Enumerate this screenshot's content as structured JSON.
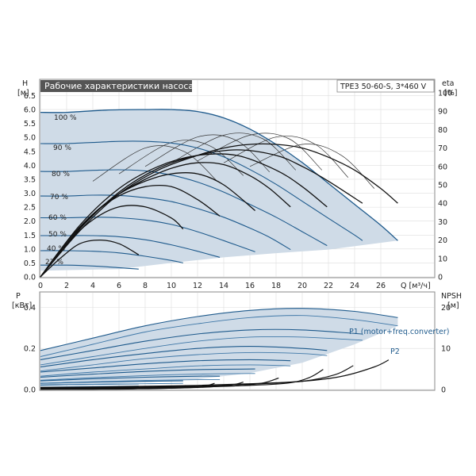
{
  "header": {
    "title": "Рабочие характеристики насоса",
    "model": "TPE3 50-60-S, 3*460 V"
  },
  "colors": {
    "envelope": "#cfdbe7",
    "speed_curve": "#1e5a8c",
    "eff_curve": "#111111",
    "title_bg": "#555555",
    "grid": "#dddddd",
    "frame": "#888888"
  },
  "chart_data": [
    {
      "type": "line",
      "name": "head",
      "ylabel_left": [
        "H",
        "[м]"
      ],
      "ylabel_right": [
        "eta",
        "[%]"
      ],
      "xlabel": "Q [м³/ч]",
      "xlim": [
        0,
        30
      ],
      "ylim": [
        0,
        6.6
      ],
      "ylim_right": [
        0,
        100
      ],
      "xticks": [
        "0",
        "2",
        "4",
        "6",
        "8",
        "10",
        "12",
        "14",
        "16",
        "18",
        "20",
        "22",
        "24",
        "26"
      ],
      "yticks": [
        "0.0",
        "0.5",
        "1.0",
        "1.5",
        "2.0",
        "2.5",
        "3.0",
        "3.5",
        "4.0",
        "4.5",
        "5.0",
        "5.5",
        "6.0",
        "6.5"
      ],
      "yticks_right": [
        "0",
        "10",
        "20",
        "30",
        "40",
        "50",
        "60",
        "70",
        "80",
        "90",
        "100"
      ],
      "grid": true,
      "envelope": {
        "upper_q": [
          0,
          2,
          5,
          8,
          10,
          12,
          14,
          16,
          18,
          20,
          22,
          24,
          26,
          27.3
        ],
        "upper_h": [
          5.9,
          5.9,
          5.98,
          6.0,
          6.0,
          5.93,
          5.7,
          5.3,
          4.75,
          4.1,
          3.35,
          2.6,
          1.85,
          1.3
        ],
        "lower_q": [
          27.3,
          22,
          18,
          14,
          10,
          7.5,
          6
        ],
        "lower_h": [
          1.3,
          0.98,
          0.85,
          0.7,
          0.5,
          0.36,
          0.28
        ]
      },
      "speed_series": [
        {
          "label": "100 %",
          "q": [
            0,
            2,
            5,
            8,
            10,
            12,
            14,
            16,
            18,
            20,
            22,
            24,
            26,
            27.3
          ],
          "h": [
            5.9,
            5.9,
            5.98,
            6.0,
            6.0,
            5.93,
            5.7,
            5.3,
            4.75,
            4.1,
            3.35,
            2.6,
            1.85,
            1.3
          ]
        },
        {
          "label": "90 %",
          "q": [
            0,
            2,
            4,
            6,
            8,
            10,
            12,
            14,
            16,
            18,
            20,
            22,
            24,
            24.6
          ],
          "h": [
            4.78,
            4.78,
            4.82,
            4.86,
            4.86,
            4.8,
            4.62,
            4.3,
            3.85,
            3.32,
            2.71,
            2.1,
            1.5,
            1.3
          ]
        },
        {
          "label": "80 %",
          "q": [
            0,
            2,
            4,
            6,
            8,
            10,
            12,
            14,
            16,
            18,
            20,
            21.9
          ],
          "h": [
            3.78,
            3.78,
            3.82,
            3.84,
            3.8,
            3.65,
            3.4,
            3.04,
            2.6,
            2.14,
            1.62,
            1.12
          ]
        },
        {
          "label": "70 %",
          "q": [
            0,
            2,
            4,
            6,
            8,
            10,
            12,
            14,
            16,
            17.5,
            19.1
          ],
          "h": [
            2.9,
            2.9,
            2.93,
            2.92,
            2.84,
            2.7,
            2.45,
            2.14,
            1.75,
            1.42,
            0.98
          ]
        },
        {
          "label": "60 %",
          "q": [
            0,
            2,
            4,
            6,
            8,
            10,
            12,
            14,
            16.4
          ],
          "h": [
            2.12,
            2.12,
            2.14,
            2.12,
            2.04,
            1.88,
            1.62,
            1.3,
            0.9
          ]
        },
        {
          "label": "50 %",
          "q": [
            0,
            2,
            4,
            6,
            8,
            10,
            12,
            13.7
          ],
          "h": [
            1.48,
            1.48,
            1.48,
            1.44,
            1.33,
            1.15,
            0.92,
            0.7
          ]
        },
        {
          "label": "40 %",
          "q": [
            0,
            2,
            4,
            6,
            8,
            10,
            10.9
          ],
          "h": [
            0.94,
            0.94,
            0.92,
            0.86,
            0.74,
            0.59,
            0.5
          ]
        },
        {
          "label": "27 %",
          "q": [
            0,
            2,
            4,
            6,
            7.5
          ],
          "h": [
            0.42,
            0.42,
            0.39,
            0.33,
            0.28
          ]
        }
      ],
      "efficiency_series": [
        {
          "q": [
            0,
            3,
            6,
            9,
            12,
            14,
            16,
            18,
            20,
            22,
            24,
            26,
            27.3
          ],
          "eta": [
            0,
            25,
            45,
            58,
            66,
            70,
            72,
            72,
            70,
            65,
            58,
            48,
            40
          ]
        },
        {
          "q": [
            0,
            3,
            6,
            9,
            12,
            15,
            18,
            20,
            22,
            24.6
          ],
          "eta": [
            0,
            26,
            46,
            59,
            66,
            69,
            66,
            60,
            52,
            40
          ]
        },
        {
          "q": [
            0,
            3,
            6,
            9,
            12,
            15,
            18,
            20,
            21.9
          ],
          "eta": [
            0,
            28,
            48,
            60,
            66,
            66,
            58,
            49,
            38
          ]
        },
        {
          "q": [
            0,
            2,
            4,
            6,
            8,
            10,
            12,
            14,
            16,
            17.5,
            19.1
          ],
          "eta": [
            0,
            19,
            34,
            45,
            53,
            59,
            62,
            61,
            55,
            48,
            38
          ]
        },
        {
          "q": [
            0,
            2,
            4,
            6,
            8,
            10,
            12,
            14,
            16.4
          ],
          "eta": [
            0,
            18,
            34,
            45,
            52,
            56,
            56,
            50,
            36
          ]
        },
        {
          "q": [
            0,
            2,
            4,
            6,
            8,
            10,
            12,
            13.7
          ],
          "eta": [
            0,
            19,
            34,
            44,
            49,
            49,
            42,
            33
          ]
        },
        {
          "q": [
            0,
            2,
            4,
            6,
            8,
            10,
            10.9
          ],
          "eta": [
            0,
            18,
            31,
            38,
            38,
            32,
            26
          ]
        },
        {
          "q": [
            0,
            1.5,
            3,
            4.5,
            6,
            7.5
          ],
          "eta": [
            0,
            10,
            18,
            20,
            18,
            12
          ]
        }
      ],
      "iso_efficiency_arcs": [
        {
          "q": [
            4,
            8,
            11,
            13.5
          ],
          "eta": [
            52,
            70,
            68,
            52
          ]
        },
        {
          "q": [
            6,
            10,
            13,
            15.5
          ],
          "eta": [
            56,
            73,
            71,
            55
          ]
        },
        {
          "q": [
            8,
            12,
            15,
            17.5
          ],
          "eta": [
            60,
            76,
            74,
            57
          ]
        },
        {
          "q": [
            10,
            14,
            17,
            19.5
          ],
          "eta": [
            62,
            77,
            75,
            58
          ]
        },
        {
          "q": [
            12,
            16,
            19,
            21.5
          ],
          "eta": [
            63,
            77,
            75,
            58
          ]
        },
        {
          "q": [
            14,
            18,
            21,
            23.5
          ],
          "eta": [
            62,
            76,
            72,
            54
          ]
        },
        {
          "q": [
            16,
            20,
            23,
            25.5
          ],
          "eta": [
            60,
            72,
            66,
            48
          ]
        }
      ]
    },
    {
      "type": "line",
      "name": "power",
      "ylabel_left": [
        "P",
        "[кВт]"
      ],
      "ylabel_right": [
        "NPSH",
        "[м]"
      ],
      "xlim": [
        0,
        30
      ],
      "ylim": [
        0,
        0.44
      ],
      "ylim_right": [
        0,
        22
      ],
      "yticks": [
        "0.0",
        "0.2",
        "0.4"
      ],
      "yticks_right": [
        "0",
        "10",
        "20"
      ],
      "grid": true,
      "envelope": {
        "upper_q": [
          0,
          4,
          8,
          12,
          16,
          20,
          24,
          27.3
        ],
        "upper_p": [
          0.19,
          0.25,
          0.31,
          0.355,
          0.385,
          0.395,
          0.38,
          0.35
        ],
        "lower_q": [
          27.3,
          24,
          20,
          16,
          12,
          8,
          4,
          0
        ],
        "lower_p": [
          0.31,
          0.22,
          0.13,
          0.08,
          0.05,
          0.035,
          0.025,
          0.02
        ]
      },
      "p1_series": [
        {
          "q": [
            0,
            4,
            8,
            12,
            16,
            20,
            24,
            27.3
          ],
          "p": [
            0.19,
            0.25,
            0.31,
            0.355,
            0.385,
            0.395,
            0.38,
            0.35
          ]
        },
        {
          "q": [
            0,
            4,
            8,
            12,
            16,
            20,
            24.6
          ],
          "p": [
            0.145,
            0.19,
            0.235,
            0.27,
            0.29,
            0.29,
            0.27
          ]
        },
        {
          "q": [
            0,
            4,
            8,
            12,
            16,
            20,
            21.9
          ],
          "p": [
            0.11,
            0.145,
            0.175,
            0.2,
            0.21,
            0.2,
            0.19
          ]
        },
        {
          "q": [
            0,
            4,
            8,
            12,
            16,
            19.1
          ],
          "p": [
            0.085,
            0.105,
            0.125,
            0.14,
            0.145,
            0.14
          ]
        },
        {
          "q": [
            0,
            4,
            8,
            12,
            16.4
          ],
          "p": [
            0.06,
            0.075,
            0.088,
            0.097,
            0.1
          ]
        },
        {
          "q": [
            0,
            4,
            8,
            12,
            13.7
          ],
          "p": [
            0.042,
            0.052,
            0.06,
            0.065,
            0.065
          ]
        },
        {
          "q": [
            0,
            4,
            8,
            10.9
          ],
          "p": [
            0.03,
            0.036,
            0.04,
            0.042
          ]
        },
        {
          "q": [
            0,
            4,
            7.5
          ],
          "p": [
            0.022,
            0.025,
            0.027
          ]
        }
      ],
      "p2_series": [
        {
          "q": [
            0,
            4,
            8,
            12,
            16,
            20,
            24,
            27.3
          ],
          "p": [
            0.16,
            0.22,
            0.28,
            0.32,
            0.35,
            0.36,
            0.34,
            0.31
          ]
        },
        {
          "q": [
            0,
            4,
            8,
            12,
            16,
            20,
            24.6
          ],
          "p": [
            0.12,
            0.16,
            0.2,
            0.235,
            0.255,
            0.255,
            0.24
          ]
        },
        {
          "q": [
            0,
            4,
            8,
            12,
            16,
            20,
            21.9
          ],
          "p": [
            0.09,
            0.12,
            0.15,
            0.17,
            0.18,
            0.175,
            0.165
          ]
        },
        {
          "q": [
            0,
            4,
            8,
            12,
            16,
            19.1
          ],
          "p": [
            0.065,
            0.085,
            0.1,
            0.115,
            0.12,
            0.115
          ]
        },
        {
          "q": [
            0,
            4,
            8,
            12,
            16.4
          ],
          "p": [
            0.045,
            0.058,
            0.068,
            0.075,
            0.078
          ]
        },
        {
          "q": [
            0,
            4,
            8,
            12,
            13.7
          ],
          "p": [
            0.03,
            0.038,
            0.044,
            0.048,
            0.048
          ]
        },
        {
          "q": [
            0,
            4,
            8,
            10.9
          ],
          "p": [
            0.02,
            0.025,
            0.028,
            0.03
          ]
        },
        {
          "q": [
            0,
            4,
            7.5
          ],
          "p": [
            0.012,
            0.015,
            0.017
          ]
        }
      ],
      "npsh_series": [
        {
          "q": [
            0,
            4,
            8,
            12,
            16,
            20,
            23,
            25.5,
            26.6
          ],
          "npsh": [
            0.5,
            0.6,
            0.8,
            1.0,
            1.4,
            2.0,
            3.2,
            5.5,
            7.2
          ]
        },
        {
          "q": [
            0,
            4,
            8,
            12,
            16,
            20,
            22.5,
            23.9
          ],
          "npsh": [
            0.4,
            0.5,
            0.7,
            0.9,
            1.3,
            2.0,
            3.6,
            5.8
          ]
        },
        {
          "q": [
            0,
            4,
            8,
            12,
            16,
            19,
            20.6,
            21.6
          ],
          "npsh": [
            0.3,
            0.4,
            0.5,
            0.7,
            1.0,
            1.6,
            3.0,
            4.9
          ]
        },
        {
          "q": [
            0,
            4,
            8,
            12,
            15,
            17,
            18.2
          ],
          "npsh": [
            0.25,
            0.3,
            0.4,
            0.6,
            0.9,
            1.6,
            2.8
          ]
        },
        {
          "q": [
            0,
            4,
            8,
            12,
            14.4,
            15.5
          ],
          "npsh": [
            0.2,
            0.25,
            0.3,
            0.5,
            1.0,
            1.8
          ]
        },
        {
          "q": [
            0,
            4,
            8,
            11,
            12.5,
            13.3
          ],
          "npsh": [
            0.15,
            0.2,
            0.25,
            0.4,
            0.8,
            1.5
          ]
        },
        {
          "q": [
            0,
            4,
            8,
            10.5,
            11.1
          ],
          "npsh": [
            0.1,
            0.15,
            0.2,
            0.4,
            1.0
          ]
        },
        {
          "q": [
            0,
            4,
            7.2,
            8.5
          ],
          "npsh": [
            0.05,
            0.08,
            0.15,
            0.6
          ]
        }
      ],
      "legend": [
        "P1 (motor+freq.converter)",
        "P2"
      ]
    }
  ]
}
